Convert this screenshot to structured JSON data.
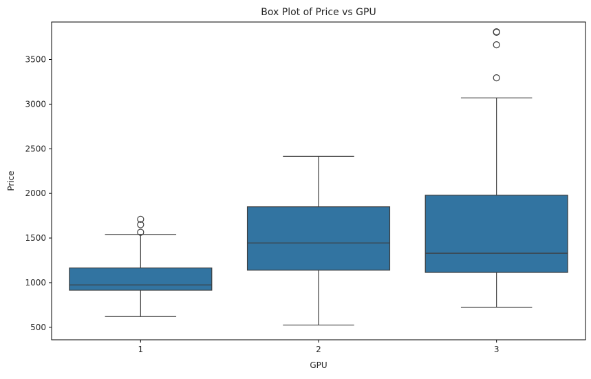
{
  "chart_data": {
    "type": "box",
    "title": "Box Plot of Price vs GPU",
    "xlabel": "GPU",
    "ylabel": "Price",
    "categories": [
      "1",
      "2",
      "3"
    ],
    "ylim": [
      360,
      3920
    ],
    "yticks": [
      500,
      1000,
      1500,
      2000,
      2500,
      3000,
      3500
    ],
    "grid": false,
    "box_color": "#3274a1",
    "edge_color": "#3d3d3d",
    "boxes": [
      {
        "category": "1",
        "whisker_low": 620,
        "q1": 915,
        "median": 975,
        "q3": 1165,
        "whisker_high": 1540,
        "outliers": [
          1565,
          1650,
          1710
        ]
      },
      {
        "category": "2",
        "whisker_low": 525,
        "q1": 1140,
        "median": 1445,
        "q3": 1850,
        "whisker_high": 2415,
        "outliers": []
      },
      {
        "category": "3",
        "whisker_low": 725,
        "q1": 1115,
        "median": 1330,
        "q3": 1980,
        "whisker_high": 3070,
        "outliers": [
          3295,
          3665,
          3805,
          3810
        ]
      }
    ]
  }
}
